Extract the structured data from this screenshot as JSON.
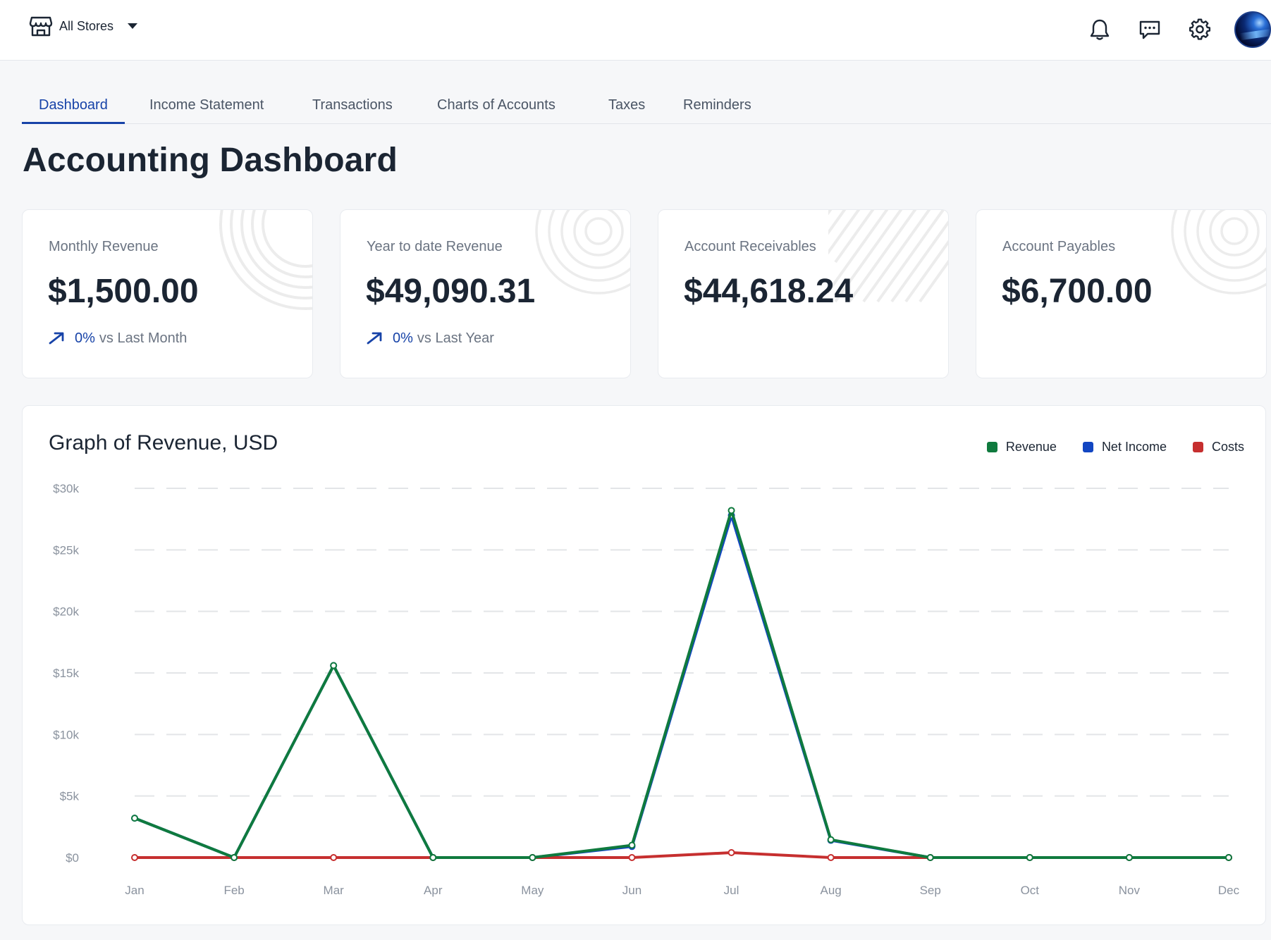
{
  "header": {
    "store_label": "All Stores",
    "icons": [
      "store-icon",
      "bell-icon",
      "chat-icon",
      "gear-icon"
    ]
  },
  "tabs": [
    {
      "label": "Dashboard",
      "active": true
    },
    {
      "label": "Income Statement",
      "active": false
    },
    {
      "label": "Transactions",
      "active": false
    },
    {
      "label": "Charts of Accounts",
      "active": false
    },
    {
      "label": "Taxes",
      "active": false
    },
    {
      "label": "Reminders",
      "active": false
    }
  ],
  "page_title": "Accounting Dashboard",
  "cards": [
    {
      "label": "Monthly Revenue",
      "value": "$1,500.00",
      "trend_pct": "0%",
      "trend_text": "vs Last Month"
    },
    {
      "label": "Year to date Revenue",
      "value": "$49,090.31",
      "trend_pct": "0%",
      "trend_text": "vs Last Year"
    },
    {
      "label": "Account Receivables",
      "value": "$44,618.24"
    },
    {
      "label": "Account Payables",
      "value": "$6,700.00"
    }
  ],
  "colors": {
    "accent": "#1743a8",
    "revenue": "#0f7a3e",
    "net_income": "#1246c2",
    "costs": "#c62f2f"
  },
  "chart_data": {
    "type": "line",
    "title": "Graph of Revenue, USD",
    "categories": [
      "Jan",
      "Feb",
      "Mar",
      "Apr",
      "May",
      "Jun",
      "Jul",
      "Aug",
      "Sep",
      "Oct",
      "Nov",
      "Dec"
    ],
    "y_ticks": [
      "$0",
      "$5k",
      "$10k",
      "$15k",
      "$20k",
      "$25k",
      "$30k"
    ],
    "ylim": [
      0,
      30000
    ],
    "grid": true,
    "legend_position": "top-right",
    "series": [
      {
        "name": "Net Income",
        "color": "#1246c2",
        "values": [
          3200,
          0,
          15600,
          0,
          0,
          900,
          27800,
          1400,
          0,
          0,
          0,
          0
        ]
      },
      {
        "name": "Costs",
        "color": "#c62f2f",
        "values": [
          0,
          0,
          0,
          0,
          0,
          0,
          400,
          0,
          0,
          0,
          0,
          0
        ]
      },
      {
        "name": "Revenue",
        "color": "#0f7a3e",
        "values": [
          3200,
          0,
          15600,
          0,
          0,
          1000,
          28200,
          1450,
          0,
          0,
          0,
          0
        ]
      }
    ],
    "legend": [
      {
        "name": "Revenue",
        "color": "#0f7a3e"
      },
      {
        "name": "Net Income",
        "color": "#1246c2"
      },
      {
        "name": "Costs",
        "color": "#c62f2f"
      }
    ]
  }
}
